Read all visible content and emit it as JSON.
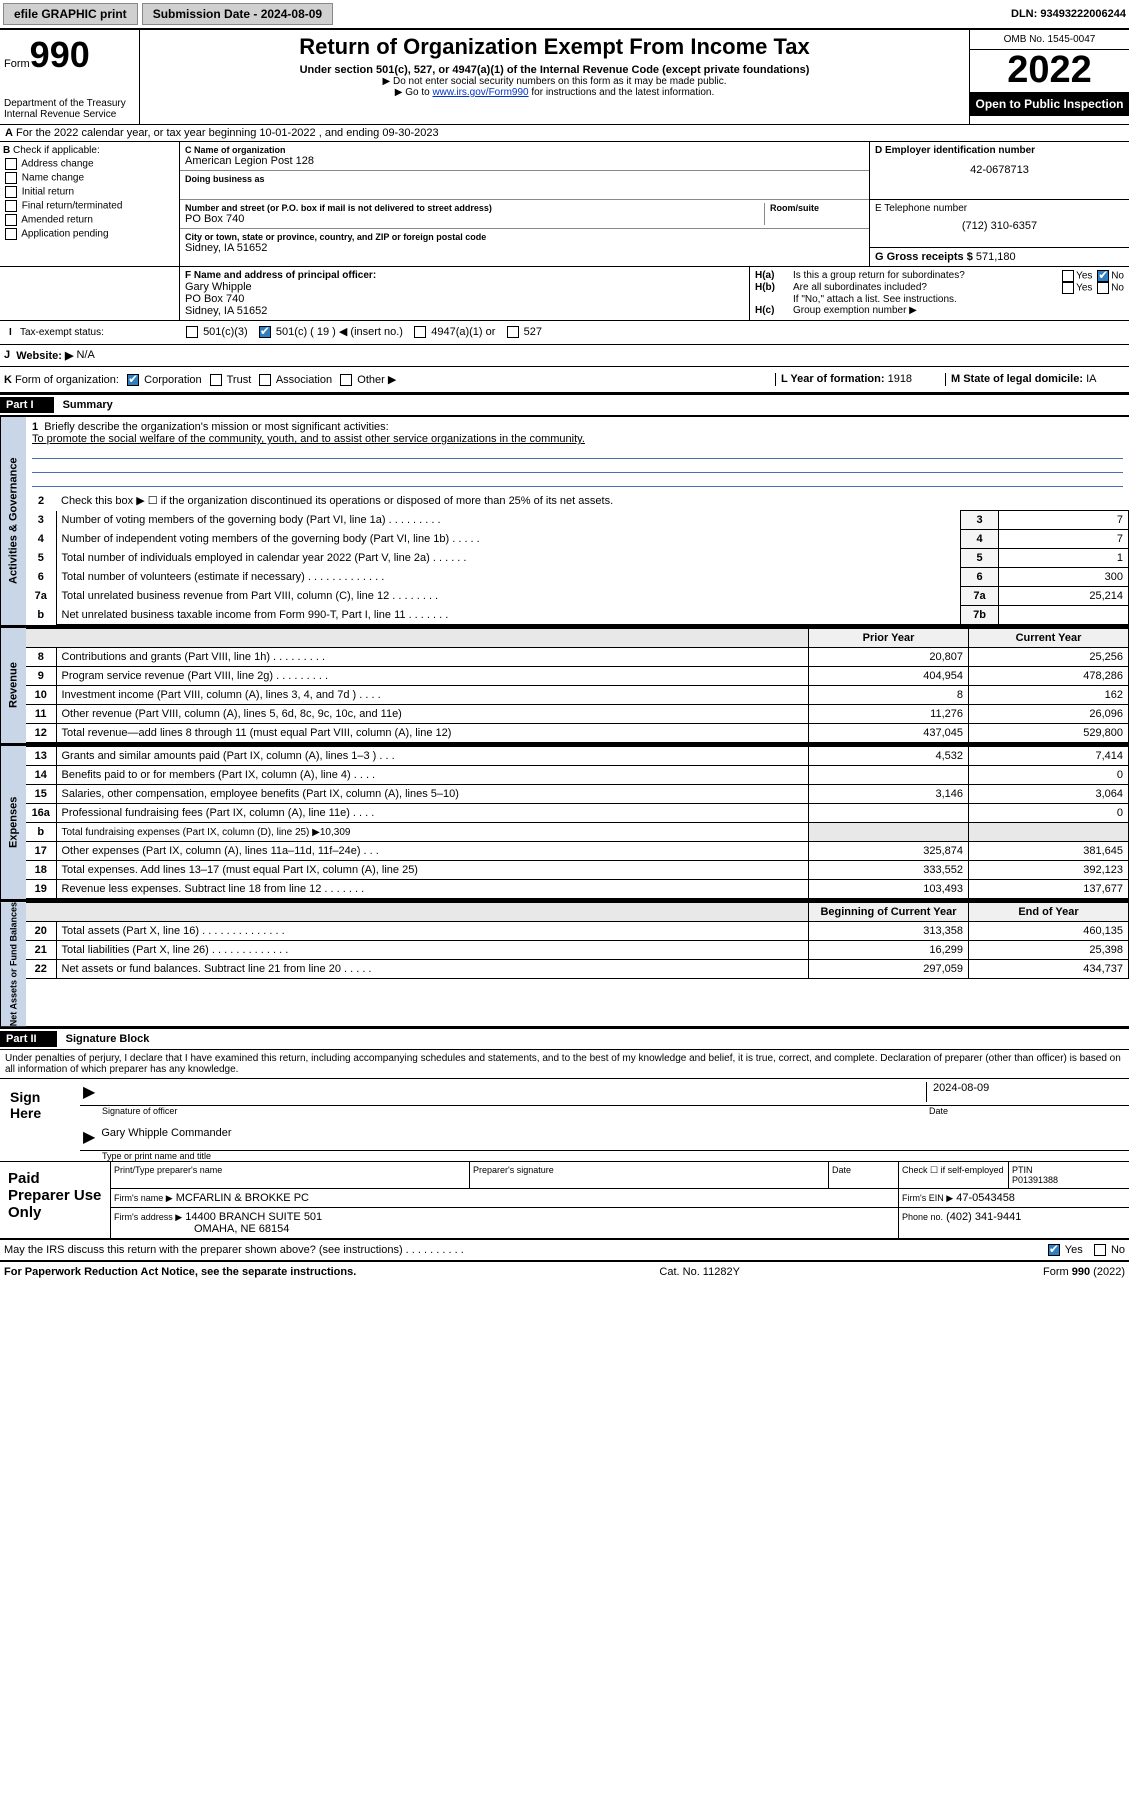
{
  "topbar": {
    "efile_label": "efile GRAPHIC print",
    "submission_label": "Submission Date - 2024-08-09",
    "dln_label": "DLN: 93493222006244"
  },
  "header": {
    "form_label": "Form",
    "form_number": "990",
    "dept": "Department of the Treasury",
    "irs": "Internal Revenue Service",
    "title": "Return of Organization Exempt From Income Tax",
    "subtitle": "Under section 501(c), 527, or 4947(a)(1) of the Internal Revenue Code (except private foundations)",
    "note1": "▶ Do not enter social security numbers on this form as it may be made public.",
    "note2_prefix": "▶ Go to ",
    "note2_link": "www.irs.gov/Form990",
    "note2_suffix": " for instructions and the latest information.",
    "omb": "OMB No. 1545-0047",
    "year": "2022",
    "open": "Open to Public Inspection"
  },
  "line_a": {
    "text": "For the 2022 calendar year, or tax year beginning 10-01-2022   , and ending 09-30-2023",
    "lead": "A"
  },
  "checkcol": {
    "lead": "B",
    "label": "Check if applicable:",
    "items": [
      "Address change",
      "Name change",
      "Initial return",
      "Final return/terminated",
      "Amended return",
      "Application pending"
    ]
  },
  "c": {
    "lbl": "C Name of organization",
    "name": "American Legion Post 128",
    "dba_lbl": "Doing business as",
    "addr_lbl": "Number and street (or P.O. box if mail is not delivered to street address)",
    "room_lbl": "Room/suite",
    "addr": "PO Box 740",
    "city_lbl": "City or town, state or province, country, and ZIP or foreign postal code",
    "city": "Sidney, IA  51652"
  },
  "d": {
    "lbl": "D Employer identification number",
    "val": "42-0678713"
  },
  "e": {
    "lbl": "E Telephone number",
    "val": "(712) 310-6357"
  },
  "g": {
    "lbl": "G Gross receipts $",
    "val": "571,180"
  },
  "f": {
    "lbl": "F  Name and address of principal officer:",
    "name": "Gary Whipple",
    "addr1": "PO Box 740",
    "addr2": "Sidney, IA  51652"
  },
  "h": {
    "ha": "Is this a group return for subordinates?",
    "hb": "Are all subordinates included?",
    "hnote": "If \"No,\" attach a list. See instructions.",
    "hc": "Group exemption number ▶",
    "yes": "Yes",
    "no": "No",
    "lead_a": "H(a)",
    "lead_b": "H(b)",
    "lead_c": "H(c)"
  },
  "i": {
    "lead": "I",
    "label": "Tax-exempt status:",
    "c3": "501(c)(3)",
    "c_": "501(c) ( 19 ) ◀ (insert no.)",
    "a1": "4947(a)(1) or",
    "s527": "527"
  },
  "j": {
    "lead": "J",
    "label": "Website: ▶",
    "val": "N/A"
  },
  "k": {
    "lead": "K",
    "label": "Form of organization:",
    "corp": "Corporation",
    "trust": "Trust",
    "assoc": "Association",
    "other": "Other ▶"
  },
  "l": {
    "label": "L Year of formation:",
    "val": "1918"
  },
  "m": {
    "label": "M State of legal domicile:",
    "val": "IA"
  },
  "part1": {
    "hdr": "Part I",
    "title": "Summary"
  },
  "summary": {
    "line1_lbl": "Briefly describe the organization's mission or most significant activities:",
    "mission": "To promote the social welfare of the community, youth, and to assist other service organizations in the community.",
    "line2": "Check this box ▶ ☐  if the organization discontinued its operations or disposed of more than 25% of its net assets.",
    "line3": "Number of voting members of the governing body (Part VI, line 1a)   .    .    .    .    .    .    .    .    .",
    "line4": "Number of independent voting members of the governing body (Part VI, line 1b)   .    .    .    .    .",
    "line5": "Total number of individuals employed in calendar year 2022 (Part V, line 2a)   .    .    .    .    .    .",
    "line6": "Total number of volunteers (estimate if necessary)   .    .    .    .    .    .    .    .    .    .    .    .    .",
    "line7a": "Total unrelated business revenue from Part VIII, column (C), line 12   .    .    .    .    .    .    .    .",
    "line7b": "Net unrelated business taxable income from Form 990-T, Part I, line 11   .    .    .    .    .    .    .",
    "v3": "7",
    "v4": "7",
    "v5": "1",
    "v6": "300",
    "v7a": "25,214",
    "v7b": ""
  },
  "revenue_hdr": {
    "prior": "Prior Year",
    "current": "Current Year"
  },
  "revenue": [
    {
      "n": "8",
      "lbl": "Contributions and grants (Part VIII, line 1h)   .    .    .    .    .    .    .    .    .",
      "p": "20,807",
      "c": "25,256"
    },
    {
      "n": "9",
      "lbl": "Program service revenue (Part VIII, line 2g)   .    .    .    .    .    .    .    .    .",
      "p": "404,954",
      "c": "478,286"
    },
    {
      "n": "10",
      "lbl": "Investment income (Part VIII, column (A), lines 3, 4, and 7d )   .    .    .    .",
      "p": "8",
      "c": "162"
    },
    {
      "n": "11",
      "lbl": "Other revenue (Part VIII, column (A), lines 5, 6d, 8c, 9c, 10c, and 11e)",
      "p": "11,276",
      "c": "26,096"
    },
    {
      "n": "12",
      "lbl": "Total revenue—add lines 8 through 11 (must equal Part VIII, column (A), line 12)",
      "p": "437,045",
      "c": "529,800"
    }
  ],
  "expenses": [
    {
      "n": "13",
      "lbl": "Grants and similar amounts paid (Part IX, column (A), lines 1–3 )   .    .    .",
      "p": "4,532",
      "c": "7,414"
    },
    {
      "n": "14",
      "lbl": "Benefits paid to or for members (Part IX, column (A), line 4)   .    .    .    .",
      "p": "",
      "c": "0"
    },
    {
      "n": "15",
      "lbl": "Salaries, other compensation, employee benefits (Part IX, column (A), lines 5–10)",
      "p": "3,146",
      "c": "3,064"
    },
    {
      "n": "16a",
      "lbl": "Professional fundraising fees (Part IX, column (A), line 11e)   .    .    .    .",
      "p": "",
      "c": "0"
    }
  ],
  "exp16b": {
    "n": "b",
    "lbl": "Total fundraising expenses (Part IX, column (D), line 25) ▶10,309"
  },
  "expenses2": [
    {
      "n": "17",
      "lbl": "Other expenses (Part IX, column (A), lines 11a–11d, 11f–24e)   .    .    .",
      "p": "325,874",
      "c": "381,645"
    },
    {
      "n": "18",
      "lbl": "Total expenses. Add lines 13–17 (must equal Part IX, column (A), line 25)",
      "p": "333,552",
      "c": "392,123"
    },
    {
      "n": "19",
      "lbl": "Revenue less expenses. Subtract line 18 from line 12   .    .    .    .    .    .    .",
      "p": "103,493",
      "c": "137,677"
    }
  ],
  "netassets_hdr": {
    "begin": "Beginning of Current Year",
    "end": "End of Year"
  },
  "netassets": [
    {
      "n": "20",
      "lbl": "Total assets (Part X, line 16)   .    .    .    .    .    .    .    .    .    .    .    .    .    .",
      "p": "313,358",
      "c": "460,135"
    },
    {
      "n": "21",
      "lbl": "Total liabilities (Part X, line 26)   .    .    .    .    .    .    .    .    .    .    .    .    .",
      "p": "16,299",
      "c": "25,398"
    },
    {
      "n": "22",
      "lbl": "Net assets or fund balances. Subtract line 21 from line 20   .    .    .    .    .",
      "p": "297,059",
      "c": "434,737"
    }
  ],
  "tabs": {
    "activities": "Activities & Governance",
    "revenue": "Revenue",
    "expenses": "Expenses",
    "netassets": "Net Assets or Fund Balances"
  },
  "part2": {
    "hdr": "Part II",
    "title": "Signature Block"
  },
  "penalties": "Under penalties of perjury, I declare that I have examined this return, including accompanying schedules and statements, and to the best of my knowledge and belief, it is true, correct, and complete. Declaration of preparer (other than officer) is based on all information of which preparer has any knowledge.",
  "sign": {
    "here": "Sign Here",
    "sig_lbl": "Signature of officer",
    "date_lbl": "Date",
    "date": "2024-08-09",
    "name": "Gary Whipple Commander",
    "name_lbl": "Type or print name and title"
  },
  "prep": {
    "title": "Paid Preparer Use Only",
    "prep_name_lbl": "Print/Type preparer's name",
    "prep_sig_lbl": "Preparer's signature",
    "date_lbl": "Date",
    "check_lbl": "Check ☐ if self-employed",
    "ptin_lbl": "PTIN",
    "ptin": "P01391388",
    "firm_name_lbl": "Firm's name    ▶",
    "firm_name": "MCFARLIN & BROKKE PC",
    "firm_ein_lbl": "Firm's EIN ▶",
    "firm_ein": "47-0543458",
    "firm_addr_lbl": "Firm's address ▶",
    "firm_addr1": "14400 BRANCH SUITE 501",
    "firm_addr2": "OMAHA, NE  68154",
    "phone_lbl": "Phone no.",
    "phone": "(402) 341-9441"
  },
  "discuss": {
    "lbl": "May the IRS discuss this return with the preparer shown above? (see instructions)   .    .    .    .    .    .    .    .    .    .",
    "yes": "Yes",
    "no": "No"
  },
  "footer": {
    "left": "For Paperwork Reduction Act Notice, see the separate instructions.",
    "mid": "Cat. No. 11282Y",
    "right": "Form 990 (2022)"
  }
}
